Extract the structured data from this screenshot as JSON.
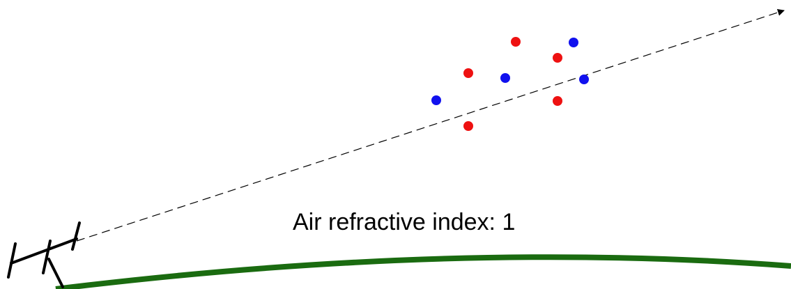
{
  "label": "Air refractive index: 1"
}
